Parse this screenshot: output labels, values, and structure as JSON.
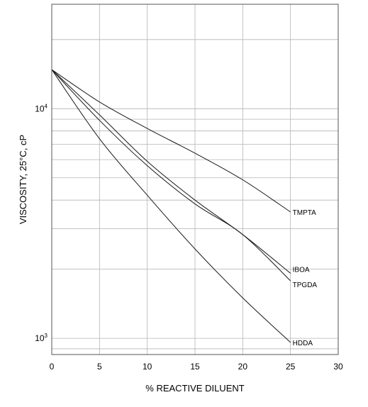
{
  "chart_data": {
    "type": "line",
    "xlabel": "% REACTIVE DILUENT",
    "ylabel": "VISCOSITY, 25°C, cP",
    "xlim": [
      0,
      30
    ],
    "ylim": [
      850,
      28500
    ],
    "yscale": "log",
    "grid": true,
    "x_ticks": [
      0,
      5,
      10,
      15,
      20,
      25,
      30
    ],
    "y_tick_labels": [
      {
        "value": 1000,
        "base": "10",
        "exp": "3"
      },
      {
        "value": 10000,
        "base": "10",
        "exp": "4"
      }
    ],
    "y_gridlines": [
      900,
      1000,
      2000,
      3000,
      4000,
      5000,
      6000,
      7000,
      8000,
      9000,
      10000,
      20000
    ],
    "series": [
      {
        "name": "TMPTA",
        "x": [
          0,
          5,
          10,
          15,
          20,
          25
        ],
        "y": [
          14800,
          10700,
          8200,
          6400,
          4900,
          3550
        ]
      },
      {
        "name": "IBOA",
        "x": [
          0,
          5,
          10,
          15,
          20,
          25
        ],
        "y": [
          14800,
          9400,
          5900,
          4000,
          2830,
          1920
        ]
      },
      {
        "name": "TPGDA",
        "x": [
          0,
          5,
          10,
          15,
          20,
          25
        ],
        "y": [
          14800,
          8900,
          5650,
          3850,
          2830,
          1780
        ]
      },
      {
        "name": "HDDA",
        "x": [
          0,
          5,
          10,
          15,
          20,
          25
        ],
        "y": [
          14800,
          7400,
          4200,
          2450,
          1500,
          960
        ]
      }
    ]
  }
}
